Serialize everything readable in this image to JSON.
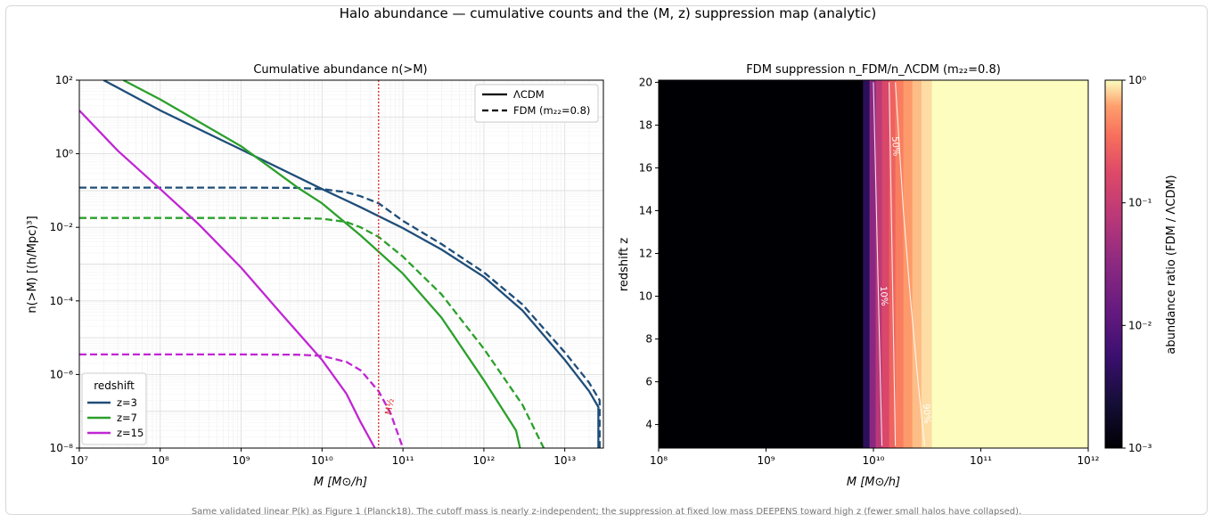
{
  "figure": {
    "suptitle": "Halo abundance — cumulative counts and the (M, z) suppression map (analytic)",
    "caption": "Same validated linear P(k) as Figure 1 (Planck18). The cutoff mass is nearly z-independent; the suppression at fixed low mass DEEPENS toward high z (fewer small halos have collapsed)."
  },
  "chart_data": [
    {
      "type": "line",
      "title": "Cumulative abundance  n(>M)",
      "xlabel": "M [M⊙/h]",
      "ylabel": "n(>M)  [(h/Mpc)³]",
      "xscale": "log",
      "yscale": "log",
      "xlim": [
        10000000.0,
        30000000000000.0
      ],
      "ylim": [
        1e-08,
        100.0
      ],
      "x_ticks": [
        "10^7",
        "10^8",
        "10^9",
        "10^10",
        "10^11",
        "10^12",
        "10^13"
      ],
      "y_ticks": [
        "10^-8",
        "10^-6",
        "10^-4",
        "10^-2",
        "10^0",
        "10^2"
      ],
      "grid": true,
      "style_legend": {
        "placement": "top-right",
        "entries": [
          {
            "label": "ΛCDM",
            "dash": "solid"
          },
          {
            "label": "FDM (m₂₂=0.8)",
            "dash": "dashed"
          }
        ]
      },
      "color_legend": {
        "placement": "bottom-left",
        "title": "redshift"
      },
      "vline": {
        "x": 50000000000.0,
        "label": "M½",
        "color": "#d62728"
      },
      "series": [
        {
          "name": "z=3",
          "model": "ΛCDM",
          "color": "#1f4e79",
          "x": [
            20000000.0,
            100000000.0,
            1000000000.0,
            10000000000.0,
            30000000000.0,
            100000000000.0,
            300000000000.0,
            1000000000000.0,
            3000000000000.0,
            10000000000000.0,
            20000000000000.0,
            26000000000000.0,
            26000000000000.0
          ],
          "y": [
            100,
            15,
            1.3,
            0.11,
            0.035,
            0.0095,
            0.0025,
            0.00045,
            5.5e-05,
            2.5e-06,
            3.5e-07,
            1.3e-07,
            1e-08
          ]
        },
        {
          "name": "z=3",
          "model": "FDM (m₂₂=0.8)",
          "color": "#1f4e79",
          "x": [
            10000000.0,
            1000000000.0,
            5000000000.0,
            10000000000.0,
            20000000000.0,
            30000000000.0,
            50000000000.0,
            100000000000.0,
            300000000000.0,
            1000000000000.0,
            3000000000000.0,
            10000000000000.0,
            20000000000000.0,
            27000000000000.0,
            27000000000000.0
          ],
          "y": [
            0.12,
            0.12,
            0.118,
            0.11,
            0.09,
            0.07,
            0.045,
            0.015,
            0.0035,
            0.0006,
            8e-05,
            4e-06,
            6e-07,
            2e-07,
            1e-08
          ]
        },
        {
          "name": "z=7",
          "model": "ΛCDM",
          "color": "#2ca02c",
          "x": [
            35000000.0,
            100000000.0,
            1000000000.0,
            5000000000.0,
            10000000000.0,
            30000000000.0,
            100000000000.0,
            300000000000.0,
            1000000000000.0,
            2500000000000.0,
            2800000000000.0
          ],
          "y": [
            100,
            30,
            1.6,
            0.12,
            0.045,
            0.006,
            0.00055,
            3.5e-05,
            7e-07,
            3e-08,
            1e-08
          ]
        },
        {
          "name": "z=7",
          "model": "FDM (m₂₂=0.8)",
          "color": "#2ca02c",
          "x": [
            10000000.0,
            1000000000.0,
            5000000000.0,
            10000000000.0,
            20000000000.0,
            30000000000.0,
            50000000000.0,
            100000000000.0,
            300000000000.0,
            1000000000000.0,
            3000000000000.0,
            5500000000000.0
          ],
          "y": [
            0.018,
            0.018,
            0.0178,
            0.0172,
            0.014,
            0.01,
            0.0055,
            0.0016,
            0.00015,
            5e-06,
            1.5e-07,
            1e-08
          ]
        },
        {
          "name": "z=15",
          "model": "ΛCDM",
          "color": "#c026d3",
          "x": [
            10000000.0,
            30000000.0,
            100000000.0,
            300000000.0,
            1000000000.0,
            3000000000.0,
            10000000000.0,
            20000000000.0,
            30000000000.0,
            45000000000.0
          ],
          "y": [
            15,
            1.2,
            0.11,
            0.012,
            0.0008,
            5e-05,
            2.5e-06,
            3e-07,
            5e-08,
            1e-08
          ]
        },
        {
          "name": "z=15",
          "model": "FDM (m₂₂=0.8)",
          "color": "#c026d3",
          "x": [
            10000000.0,
            1000000000.0,
            5000000000.0,
            10000000000.0,
            20000000000.0,
            30000000000.0,
            50000000000.0,
            70000000000.0,
            100000000000.0
          ],
          "y": [
            3.5e-06,
            3.5e-06,
            3.45e-06,
            3.2e-06,
            2.2e-06,
            1.3e-06,
            3.5e-07,
            9e-08,
            1e-08
          ]
        }
      ]
    },
    {
      "type": "heatmap",
      "title": "FDM suppression  n_FDM/n_ΛCDM  (m₂₂=0.8)",
      "xlabel": "M [M⊙/h]",
      "ylabel": "redshift z",
      "xscale": "log",
      "xlim": [
        100000000.0,
        1000000000000.0
      ],
      "ylim": [
        2.9,
        20.1
      ],
      "x_ticks": [
        "10^8",
        "10^9",
        "10^10",
        "10^11",
        "10^12"
      ],
      "y_ticks": [
        4,
        6,
        8,
        10,
        12,
        14,
        16,
        18,
        20
      ],
      "colormap": "magma",
      "colorbar": {
        "label": "abundance ratio (FDM / ΛCDM)",
        "scale": "log",
        "range": [
          0.001,
          1
        ],
        "ticks": [
          "10^-3",
          "10^-2",
          "10^-1",
          "10^0"
        ]
      },
      "bands": [
        {
          "m_lo": 100000000.0,
          "m_hi": 8000000000.0,
          "ratio": 0.001
        },
        {
          "m_lo": 8000000000.0,
          "m_hi": 9200000000.0,
          "ratio": 0.004
        },
        {
          "m_lo": 9200000000.0,
          "m_hi": 10500000000.0,
          "ratio": 0.03
        },
        {
          "m_lo": 10500000000.0,
          "m_hi": 12000000000.0,
          "ratio": 0.08
        },
        {
          "m_lo": 12000000000.0,
          "m_hi": 14000000000.0,
          "ratio": 0.16
        },
        {
          "m_lo": 14000000000.0,
          "m_hi": 16000000000.0,
          "ratio": 0.28
        },
        {
          "m_lo": 16000000000.0,
          "m_hi": 19000000000.0,
          "ratio": 0.42
        },
        {
          "m_lo": 19000000000.0,
          "m_hi": 23000000000.0,
          "ratio": 0.58
        },
        {
          "m_lo": 23000000000.0,
          "m_hi": 28000000000.0,
          "ratio": 0.72
        },
        {
          "m_lo": 28000000000.0,
          "m_hi": 35000000000.0,
          "ratio": 0.85
        },
        {
          "m_lo": 35000000000.0,
          "m_hi": 1000000000000.0,
          "ratio": 1.0
        }
      ],
      "contours": [
        {
          "label": "10%",
          "z": [
            3,
            20
          ],
          "m": [
            12000000000.0,
            10000000000.0
          ]
        },
        {
          "label": "50%",
          "z": [
            3,
            20
          ],
          "m": [
            16000000000.0,
            14000000000.0
          ]
        },
        {
          "label": "90%",
          "z": [
            3,
            6,
            10,
            14,
            20
          ],
          "m": [
            30000000000.0,
            26000000000.0,
            22000000000.0,
            19000000000.0,
            16000000000.0
          ]
        }
      ]
    }
  ]
}
